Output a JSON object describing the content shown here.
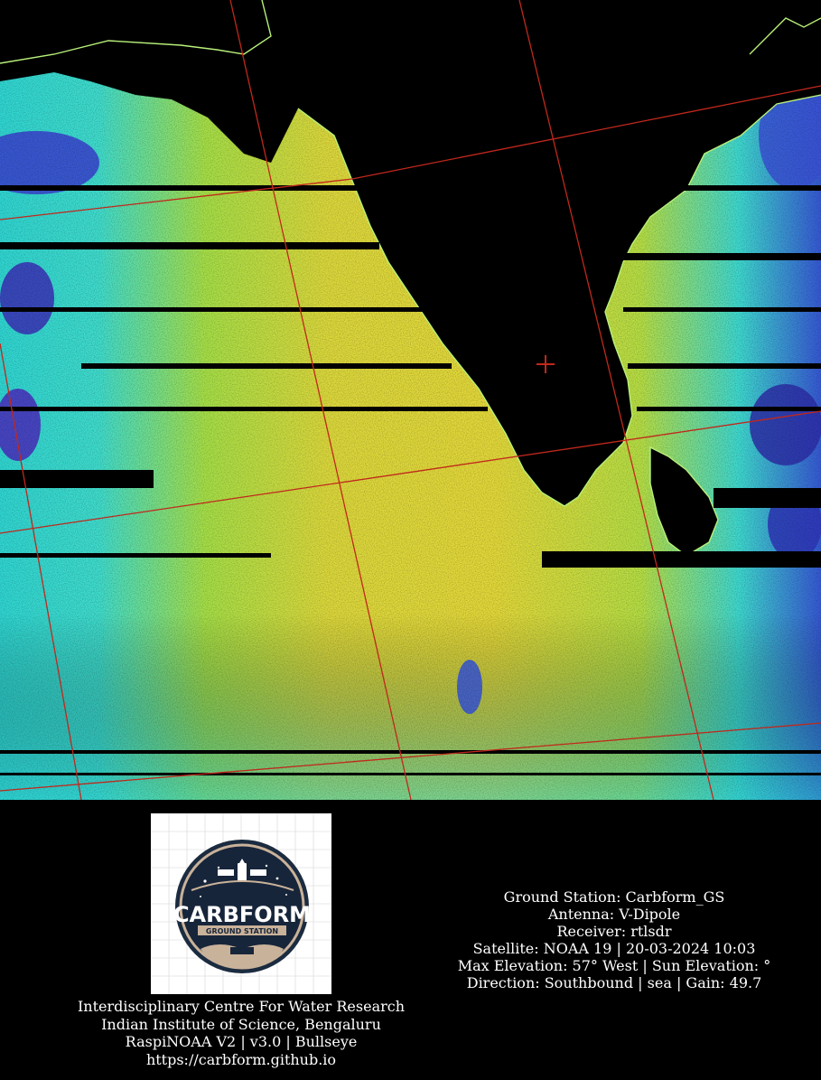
{
  "image": {
    "description_icon": "noaa-satellite-false-color-sea-surface-image",
    "colors": {
      "ocean_warm": "#e0d83a",
      "ocean_mid": "#9fdc4a",
      "ocean_cool": "#36d8d0",
      "ocean_cold": "#3a4fd6",
      "land": "#000000",
      "coastline": "#b8f07a",
      "grid": "#c0281c"
    }
  },
  "logo": {
    "title": "CARBFORM",
    "subtitle": "GROUND STATION",
    "colors": {
      "badge": "#17253a",
      "ring": "#c9b29a",
      "accent": "#ffffff"
    }
  },
  "station_info": {
    "ground_station": "Ground Station: Carbform_GS",
    "antenna": "Antenna: V-Dipole",
    "receiver": "Receiver: rtlsdr",
    "satellite": "Satellite: NOAA 19 | 20-03-2024 10:03",
    "elevation": "Max Elevation: 57° West | Sun Elevation: °",
    "direction": "Direction: Southbound | sea | Gain: 49.7"
  },
  "organization": {
    "line1": "Interdisciplinary Centre For Water Research",
    "line2": "Indian Institute of Science, Bengaluru",
    "line3": "RaspiNOAA V2 | v3.0 | Bullseye",
    "line4": "https://carbform.github.io"
  }
}
